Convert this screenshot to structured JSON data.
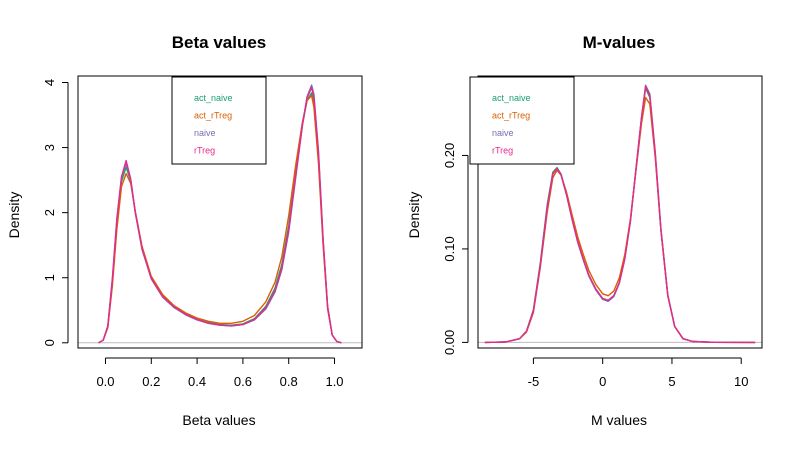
{
  "chart_data": [
    {
      "type": "line",
      "title": "Beta values",
      "xlabel": "Beta values",
      "ylabel": "Density",
      "xlim": [
        -0.12,
        1.12
      ],
      "ylim": [
        -0.08,
        4.1
      ],
      "xticks": [
        0.0,
        0.2,
        0.4,
        0.6,
        0.8,
        1.0
      ],
      "xtick_labels": [
        "0.0",
        "0.2",
        "0.4",
        "0.6",
        "0.8",
        "1.0"
      ],
      "yticks": [
        0,
        1,
        2,
        3,
        4
      ],
      "ytick_labels": [
        "0",
        "1",
        "2",
        "3",
        "4"
      ],
      "grid": false,
      "baseline_y": 0,
      "legend": {
        "placement": "top-center",
        "entries": [
          "act_naive",
          "act_rTreg",
          "naive",
          "rTreg"
        ]
      },
      "series": [
        {
          "name": "act_naive",
          "color": "#1b9e77",
          "x": [
            -0.03,
            -0.01,
            0.01,
            0.03,
            0.05,
            0.07,
            0.09,
            0.11,
            0.13,
            0.16,
            0.2,
            0.25,
            0.3,
            0.35,
            0.4,
            0.45,
            0.5,
            0.55,
            0.6,
            0.65,
            0.7,
            0.74,
            0.77,
            0.8,
            0.83,
            0.86,
            0.88,
            0.9,
            0.91,
            0.93,
            0.95,
            0.97,
            0.99,
            1.01,
            1.03
          ],
          "y": [
            0.0,
            0.04,
            0.25,
            0.95,
            1.85,
            2.48,
            2.7,
            2.48,
            2.0,
            1.45,
            1.0,
            0.72,
            0.55,
            0.44,
            0.36,
            0.31,
            0.28,
            0.27,
            0.29,
            0.37,
            0.56,
            0.84,
            1.2,
            1.8,
            2.6,
            3.35,
            3.72,
            3.84,
            3.7,
            2.85,
            1.55,
            0.55,
            0.12,
            0.02,
            0.0
          ]
        },
        {
          "name": "act_rTreg",
          "color": "#d95f02",
          "x": [
            -0.03,
            -0.01,
            0.01,
            0.03,
            0.05,
            0.07,
            0.09,
            0.11,
            0.13,
            0.16,
            0.2,
            0.25,
            0.3,
            0.35,
            0.4,
            0.45,
            0.5,
            0.55,
            0.6,
            0.65,
            0.7,
            0.74,
            0.77,
            0.8,
            0.83,
            0.86,
            0.88,
            0.9,
            0.91,
            0.93,
            0.95,
            0.97,
            0.99,
            1.01,
            1.03
          ],
          "y": [
            0.0,
            0.04,
            0.23,
            0.88,
            1.75,
            2.4,
            2.6,
            2.45,
            2.02,
            1.48,
            1.02,
            0.74,
            0.57,
            0.46,
            0.38,
            0.33,
            0.3,
            0.3,
            0.33,
            0.42,
            0.63,
            0.93,
            1.32,
            1.95,
            2.72,
            3.4,
            3.72,
            3.8,
            3.62,
            2.75,
            1.5,
            0.52,
            0.12,
            0.02,
            0.0
          ]
        },
        {
          "name": "naive",
          "color": "#7570b3",
          "x": [
            -0.03,
            -0.01,
            0.01,
            0.03,
            0.05,
            0.07,
            0.09,
            0.11,
            0.13,
            0.16,
            0.2,
            0.25,
            0.3,
            0.35,
            0.4,
            0.45,
            0.5,
            0.55,
            0.6,
            0.65,
            0.7,
            0.74,
            0.77,
            0.8,
            0.83,
            0.86,
            0.88,
            0.9,
            0.91,
            0.93,
            0.95,
            0.97,
            0.99,
            1.01,
            1.03
          ],
          "y": [
            0.0,
            0.04,
            0.26,
            1.0,
            1.92,
            2.55,
            2.76,
            2.5,
            2.0,
            1.43,
            0.98,
            0.7,
            0.54,
            0.43,
            0.35,
            0.3,
            0.27,
            0.26,
            0.28,
            0.35,
            0.52,
            0.78,
            1.12,
            1.7,
            2.52,
            3.35,
            3.78,
            3.96,
            3.82,
            2.95,
            1.6,
            0.56,
            0.12,
            0.02,
            0.0
          ]
        },
        {
          "name": "rTreg",
          "color": "#e7298a",
          "x": [
            -0.03,
            -0.01,
            0.01,
            0.03,
            0.05,
            0.07,
            0.09,
            0.11,
            0.13,
            0.16,
            0.2,
            0.25,
            0.3,
            0.35,
            0.4,
            0.45,
            0.5,
            0.55,
            0.6,
            0.65,
            0.7,
            0.74,
            0.77,
            0.8,
            0.83,
            0.86,
            0.88,
            0.9,
            0.91,
            0.93,
            0.95,
            0.97,
            0.99,
            1.01,
            1.03
          ],
          "y": [
            0.0,
            0.04,
            0.25,
            0.97,
            1.9,
            2.55,
            2.8,
            2.52,
            2.01,
            1.44,
            0.99,
            0.71,
            0.55,
            0.44,
            0.36,
            0.3,
            0.27,
            0.26,
            0.28,
            0.36,
            0.54,
            0.8,
            1.15,
            1.74,
            2.56,
            3.36,
            3.76,
            3.92,
            3.78,
            2.9,
            1.58,
            0.56,
            0.12,
            0.02,
            0.0
          ]
        }
      ]
    },
    {
      "type": "line",
      "title": "M-values",
      "xlabel": "M values",
      "ylabel": "Density",
      "xlim": [
        -9.0,
        11.5
      ],
      "ylim": [
        -0.006,
        0.285
      ],
      "xticks": [
        -5,
        0,
        5,
        10
      ],
      "xtick_labels": [
        "-5",
        "0",
        "5",
        "10"
      ],
      "yticks": [
        0.0,
        0.1,
        0.2
      ],
      "ytick_labels": [
        "0.00",
        "0.10",
        "0.20"
      ],
      "grid": false,
      "baseline_y": 0,
      "legend": {
        "placement": "top-left",
        "entries": [
          "act_naive",
          "act_rTreg",
          "naive",
          "rTreg"
        ]
      },
      "series": [
        {
          "name": "act_naive",
          "color": "#1b9e77",
          "x": [
            -8.5,
            -7.0,
            -6.0,
            -5.5,
            -5.0,
            -4.5,
            -4.0,
            -3.6,
            -3.3,
            -3.0,
            -2.6,
            -2.2,
            -1.8,
            -1.4,
            -1.0,
            -0.5,
            0.0,
            0.4,
            0.8,
            1.2,
            1.6,
            2.0,
            2.4,
            2.8,
            3.1,
            3.4,
            3.8,
            4.2,
            4.7,
            5.2,
            5.8,
            6.5,
            8.0,
            11.0
          ],
          "y": [
            0.0,
            0.0004,
            0.004,
            0.012,
            0.035,
            0.085,
            0.148,
            0.182,
            0.187,
            0.18,
            0.158,
            0.132,
            0.108,
            0.089,
            0.072,
            0.057,
            0.047,
            0.045,
            0.05,
            0.064,
            0.09,
            0.13,
            0.185,
            0.24,
            0.272,
            0.262,
            0.2,
            0.12,
            0.05,
            0.017,
            0.004,
            0.001,
            0.0001,
            0.0
          ]
        },
        {
          "name": "act_rTreg",
          "color": "#d95f02",
          "x": [
            -8.5,
            -7.0,
            -6.0,
            -5.5,
            -5.0,
            -4.5,
            -4.0,
            -3.6,
            -3.3,
            -3.0,
            -2.6,
            -2.2,
            -1.8,
            -1.4,
            -1.0,
            -0.5,
            0.0,
            0.4,
            0.8,
            1.2,
            1.6,
            2.0,
            2.4,
            2.8,
            3.1,
            3.4,
            3.8,
            4.2,
            4.7,
            5.2,
            5.8,
            6.5,
            8.0,
            11.0
          ],
          "y": [
            0.0,
            0.0004,
            0.004,
            0.011,
            0.032,
            0.08,
            0.14,
            0.176,
            0.184,
            0.179,
            0.16,
            0.136,
            0.113,
            0.094,
            0.077,
            0.062,
            0.052,
            0.05,
            0.055,
            0.069,
            0.094,
            0.132,
            0.183,
            0.234,
            0.262,
            0.255,
            0.197,
            0.12,
            0.05,
            0.017,
            0.004,
            0.001,
            0.0001,
            0.0
          ]
        },
        {
          "name": "naive",
          "color": "#7570b3",
          "x": [
            -8.5,
            -7.0,
            -6.0,
            -5.5,
            -5.0,
            -4.5,
            -4.0,
            -3.6,
            -3.3,
            -3.0,
            -2.6,
            -2.2,
            -1.8,
            -1.4,
            -1.0,
            -0.5,
            0.0,
            0.4,
            0.8,
            1.2,
            1.6,
            2.0,
            2.4,
            2.8,
            3.1,
            3.4,
            3.8,
            4.2,
            4.7,
            5.2,
            5.8,
            6.5,
            8.0,
            11.0
          ],
          "y": [
            0.0,
            0.0004,
            0.004,
            0.012,
            0.034,
            0.083,
            0.146,
            0.18,
            0.186,
            0.179,
            0.157,
            0.131,
            0.107,
            0.088,
            0.071,
            0.056,
            0.046,
            0.044,
            0.049,
            0.063,
            0.089,
            0.129,
            0.184,
            0.24,
            0.275,
            0.266,
            0.203,
            0.122,
            0.051,
            0.017,
            0.004,
            0.001,
            0.0001,
            0.0
          ]
        },
        {
          "name": "rTreg",
          "color": "#e7298a",
          "x": [
            -8.5,
            -7.0,
            -6.0,
            -5.5,
            -5.0,
            -4.5,
            -4.0,
            -3.6,
            -3.3,
            -3.0,
            -2.6,
            -2.2,
            -1.8,
            -1.4,
            -1.0,
            -0.5,
            0.0,
            0.4,
            0.8,
            1.2,
            1.6,
            2.0,
            2.4,
            2.8,
            3.1,
            3.4,
            3.8,
            4.2,
            4.7,
            5.2,
            5.8,
            6.5,
            8.0,
            11.0
          ],
          "y": [
            0.0,
            0.0004,
            0.004,
            0.012,
            0.034,
            0.083,
            0.145,
            0.18,
            0.186,
            0.179,
            0.157,
            0.131,
            0.108,
            0.089,
            0.072,
            0.057,
            0.047,
            0.045,
            0.05,
            0.064,
            0.09,
            0.13,
            0.185,
            0.241,
            0.274,
            0.264,
            0.201,
            0.121,
            0.05,
            0.017,
            0.004,
            0.001,
            0.0001,
            0.0
          ]
        }
      ]
    }
  ]
}
